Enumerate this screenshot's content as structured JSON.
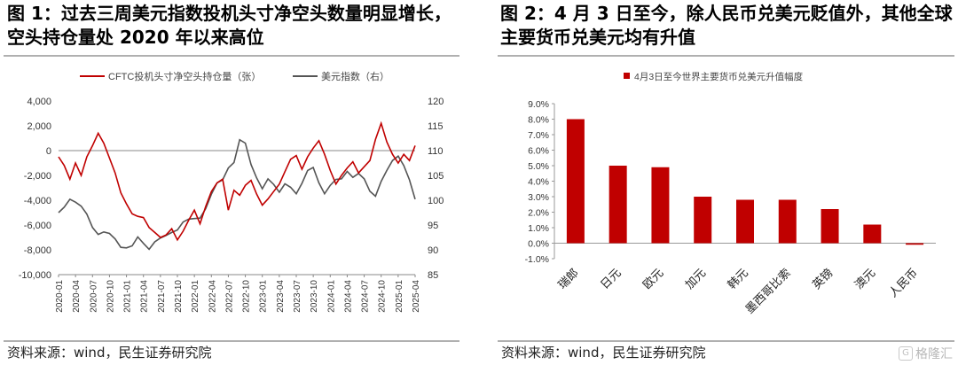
{
  "left": {
    "title": "图 1：过去三周美元指数投机头寸净空头数量明显增长，空头持仓量处 2020 年以来高位",
    "source": "资料来源：wind，民生证券研究院"
  },
  "right": {
    "title": "图 2：4 月 3 日至今，除人民币兑美元贬值外，其他全球主要货币兑美元均有升值",
    "source": "资料来源：wind，民生证券研究院"
  },
  "watermark": {
    "text": "格隆汇",
    "icon": "gelonghui-logo-icon"
  },
  "chart_data": [
    {
      "type": "line",
      "legend_position": "top",
      "grid": false,
      "x_ticks": [
        "2020-01",
        "2020-04",
        "2020-07",
        "2020-10",
        "2021-01",
        "2021-04",
        "2021-07",
        "2021-10",
        "2022-01",
        "2022-04",
        "2022-07",
        "2022-10",
        "2023-01",
        "2023-04",
        "2023-07",
        "2023-10",
        "2024-01",
        "2024-04",
        "2024-07",
        "2024-10",
        "2025-01",
        "2025-04"
      ],
      "y_left": {
        "lim": [
          -10000,
          4000
        ],
        "ticks": [
          "4,000",
          "2,000",
          "0",
          "-2,000",
          "-4,000",
          "-6,000",
          "-8,000",
          "-10,000"
        ]
      },
      "y_right": {
        "lim": [
          85,
          120
        ],
        "ticks": [
          "120",
          "115",
          "110",
          "105",
          "100",
          "95",
          "90",
          "85"
        ]
      },
      "series": [
        {
          "name": "CFTC投机头寸净空头持仓量（张）",
          "axis": "left",
          "color": "#c00000",
          "points": [
            [
              "2020-01",
              -500
            ],
            [
              "2020-02",
              -1200
            ],
            [
              "2020-03",
              -2300
            ],
            [
              "2020-04",
              -1000
            ],
            [
              "2020-05",
              -2000
            ],
            [
              "2020-06",
              -500
            ],
            [
              "2020-07",
              400
            ],
            [
              "2020-08",
              1400
            ],
            [
              "2020-09",
              600
            ],
            [
              "2020-10",
              -600
            ],
            [
              "2020-11",
              -1800
            ],
            [
              "2020-12",
              -3400
            ],
            [
              "2021-01",
              -4300
            ],
            [
              "2021-02",
              -5100
            ],
            [
              "2021-03",
              -5300
            ],
            [
              "2021-04",
              -5400
            ],
            [
              "2021-05",
              -6200
            ],
            [
              "2021-06",
              -6600
            ],
            [
              "2021-07",
              -7000
            ],
            [
              "2021-08",
              -6800
            ],
            [
              "2021-09",
              -6300
            ],
            [
              "2021-10",
              -7200
            ],
            [
              "2021-11",
              -6500
            ],
            [
              "2021-12",
              -5600
            ],
            [
              "2022-01",
              -4800
            ],
            [
              "2022-02",
              -5900
            ],
            [
              "2022-03",
              -4500
            ],
            [
              "2022-04",
              -3300
            ],
            [
              "2022-05",
              -2600
            ],
            [
              "2022-06",
              -2300
            ],
            [
              "2022-07",
              -4800
            ],
            [
              "2022-08",
              -3200
            ],
            [
              "2022-09",
              -3600
            ],
            [
              "2022-10",
              -2800
            ],
            [
              "2022-11",
              -2400
            ],
            [
              "2022-12",
              -3500
            ],
            [
              "2023-01",
              -4400
            ],
            [
              "2023-02",
              -3900
            ],
            [
              "2023-03",
              -3300
            ],
            [
              "2023-04",
              -2700
            ],
            [
              "2023-05",
              -1700
            ],
            [
              "2023-06",
              -700
            ],
            [
              "2023-07",
              -400
            ],
            [
              "2023-08",
              -1500
            ],
            [
              "2023-09",
              -500
            ],
            [
              "2023-10",
              200
            ],
            [
              "2023-11",
              800
            ],
            [
              "2023-12",
              -300
            ],
            [
              "2024-01",
              -1600
            ],
            [
              "2024-02",
              -2700
            ],
            [
              "2024-03",
              -2000
            ],
            [
              "2024-04",
              -1400
            ],
            [
              "2024-05",
              -900
            ],
            [
              "2024-06",
              -1800
            ],
            [
              "2024-07",
              -1300
            ],
            [
              "2024-08",
              -800
            ],
            [
              "2024-09",
              900
            ],
            [
              "2024-10",
              2200
            ],
            [
              "2024-11",
              700
            ],
            [
              "2024-12",
              -300
            ],
            [
              "2025-01",
              -1000
            ],
            [
              "2025-02",
              -300
            ],
            [
              "2025-03",
              -800
            ],
            [
              "2025-04",
              400
            ]
          ]
        },
        {
          "name": "美元指数（右）",
          "axis": "right",
          "color": "#555555",
          "points": [
            [
              "2020-01",
              97.5
            ],
            [
              "2020-02",
              98.6
            ],
            [
              "2020-03",
              100.2
            ],
            [
              "2020-04",
              99.6
            ],
            [
              "2020-05",
              98.8
            ],
            [
              "2020-06",
              97.2
            ],
            [
              "2020-07",
              94.5
            ],
            [
              "2020-08",
              93.1
            ],
            [
              "2020-09",
              93.6
            ],
            [
              "2020-10",
              93.3
            ],
            [
              "2020-11",
              92.2
            ],
            [
              "2020-12",
              90.5
            ],
            [
              "2021-01",
              90.4
            ],
            [
              "2021-02",
              90.8
            ],
            [
              "2021-03",
              92.6
            ],
            [
              "2021-04",
              91.3
            ],
            [
              "2021-05",
              90.1
            ],
            [
              "2021-06",
              91.6
            ],
            [
              "2021-07",
              92.4
            ],
            [
              "2021-08",
              92.9
            ],
            [
              "2021-09",
              93.5
            ],
            [
              "2021-10",
              94.0
            ],
            [
              "2021-11",
              95.6
            ],
            [
              "2021-12",
              96.2
            ],
            [
              "2022-01",
              96.3
            ],
            [
              "2022-02",
              96.4
            ],
            [
              "2022-03",
              98.3
            ],
            [
              "2022-04",
              101.2
            ],
            [
              "2022-05",
              103.5
            ],
            [
              "2022-06",
              104.1
            ],
            [
              "2022-07",
              106.5
            ],
            [
              "2022-08",
              107.6
            ],
            [
              "2022-09",
              112.2
            ],
            [
              "2022-10",
              111.5
            ],
            [
              "2022-11",
              107.2
            ],
            [
              "2022-12",
              104.5
            ],
            [
              "2023-01",
              102.3
            ],
            [
              "2023-02",
              104.3
            ],
            [
              "2023-03",
              103.2
            ],
            [
              "2023-04",
              101.6
            ],
            [
              "2023-05",
              103.3
            ],
            [
              "2023-06",
              102.6
            ],
            [
              "2023-07",
              101.3
            ],
            [
              "2023-08",
              103.4
            ],
            [
              "2023-09",
              106.0
            ],
            [
              "2023-10",
              106.6
            ],
            [
              "2023-11",
              103.5
            ],
            [
              "2023-12",
              101.3
            ],
            [
              "2024-01",
              103.0
            ],
            [
              "2024-02",
              104.2
            ],
            [
              "2024-03",
              104.3
            ],
            [
              "2024-04",
              105.8
            ],
            [
              "2024-05",
              104.6
            ],
            [
              "2024-06",
              105.4
            ],
            [
              "2024-07",
              104.3
            ],
            [
              "2024-08",
              101.8
            ],
            [
              "2024-09",
              100.8
            ],
            [
              "2024-10",
              103.8
            ],
            [
              "2024-11",
              106.0
            ],
            [
              "2024-12",
              108.0
            ],
            [
              "2025-01",
              108.9
            ],
            [
              "2025-02",
              107.0
            ],
            [
              "2025-03",
              104.1
            ],
            [
              "2025-04",
              100.2
            ]
          ]
        }
      ]
    },
    {
      "type": "bar",
      "title": "4月3日至今世界主要货币兑美元升值幅度",
      "legend_position": "top",
      "grid": false,
      "color": "#c00000",
      "categories": [
        "瑞郎",
        "日元",
        "欧元",
        "加元",
        "韩元",
        "墨西哥比索",
        "英镑",
        "澳元",
        "人民币"
      ],
      "values": [
        8.0,
        5.0,
        4.9,
        3.0,
        2.8,
        2.8,
        2.2,
        1.2,
        -0.1
      ],
      "y_ticks": [
        "9.0%",
        "8.0%",
        "7.0%",
        "6.0%",
        "5.0%",
        "4.0%",
        "3.0%",
        "2.0%",
        "1.0%",
        "0.0%",
        "-1.0%"
      ],
      "ylim": [
        -1.0,
        9.0
      ]
    }
  ]
}
